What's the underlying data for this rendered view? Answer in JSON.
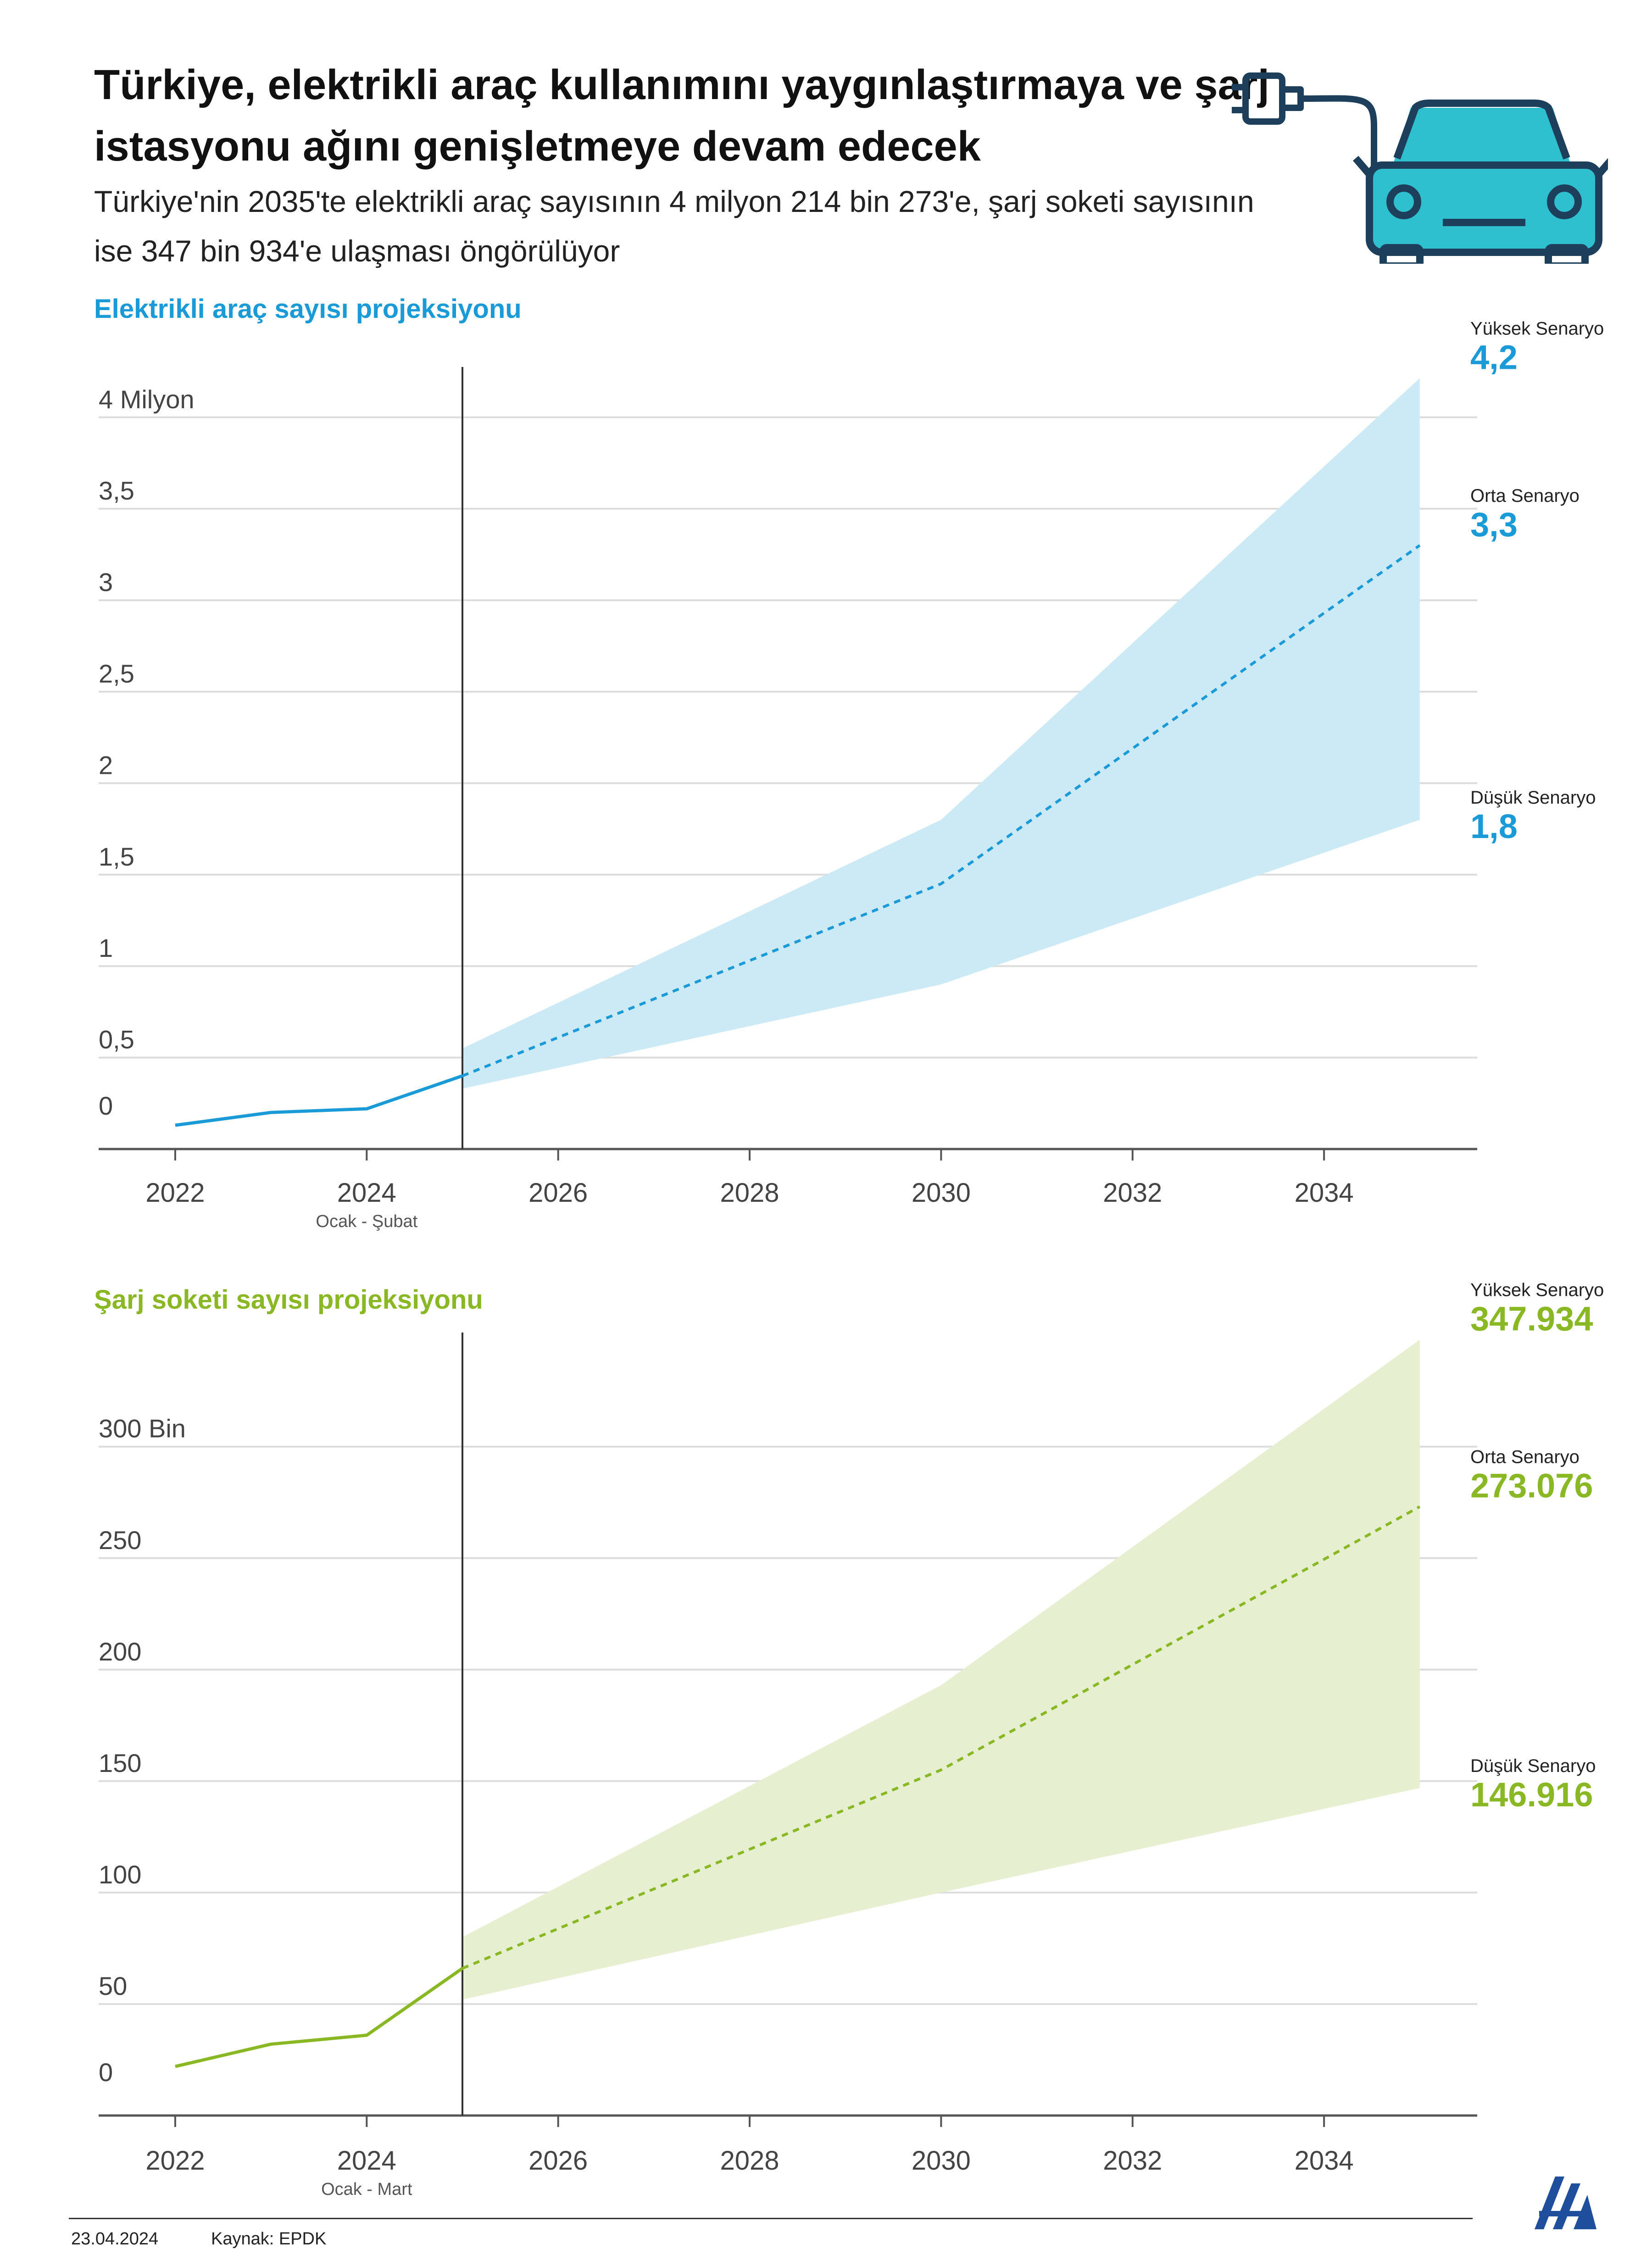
{
  "header": {
    "title": "Türkiye, elektrikli araç kullanımını yaygınlaştırmaya ve şarj istasyonu ağını genişletmeye devam edecek",
    "subtitle": "Türkiye'nin 2035'te elektrikli araç sayısının 4 milyon 214 bin 273'e, şarj soketi sayısının ise 347 bin 934'e ulaşması öngörülüyor",
    "icon": "ev-charging-car-icon"
  },
  "chart_data": [
    {
      "type": "area",
      "title": "Elektrikli araç sayısı projeksiyonu",
      "color": "#1a9ad6",
      "band_color": "#cce9f6",
      "ylim": [
        0,
        4.2
      ],
      "yticks": [
        0,
        0.5,
        1,
        1.5,
        2,
        2.5,
        3,
        3.5,
        4
      ],
      "ytick_labels": [
        "0",
        "0,5",
        "1",
        "1,5",
        "2",
        "2,5",
        "3",
        "3,5",
        "4 Milyon"
      ],
      "xlim": [
        2021.2,
        2035.6
      ],
      "xticks": [
        2022,
        2024,
        2026,
        2028,
        2030,
        2032,
        2034
      ],
      "xtick_labels": [
        "2022",
        "2024",
        "2026",
        "2028",
        "2030",
        "2032",
        "2034"
      ],
      "x_note": "Ocak - Şubat",
      "divider_x": 2025,
      "historical": {
        "x": [
          2022,
          2023,
          2024,
          2025
        ],
        "y": [
          0.13,
          0.2,
          0.22,
          0.4
        ]
      },
      "series": [
        {
          "name": "Yüksek Senaryo",
          "x": [
            2025,
            2030,
            2035
          ],
          "y": [
            0.55,
            1.8,
            4.214
          ],
          "label": "4,2"
        },
        {
          "name": "Orta Senaryo",
          "x": [
            2025,
            2030,
            2035
          ],
          "y": [
            0.4,
            1.45,
            3.3
          ],
          "label": "3,3"
        },
        {
          "name": "Düşük Senaryo",
          "x": [
            2025,
            2030,
            2035
          ],
          "y": [
            0.33,
            0.9,
            1.8
          ],
          "label": "1,8"
        }
      ]
    },
    {
      "type": "area",
      "title": "Şarj soketi sayısı projeksiyonu",
      "color": "#8ab824",
      "band_color": "#e6f0d0",
      "ylim": [
        0,
        345
      ],
      "yticks": [
        0,
        50,
        100,
        150,
        200,
        250,
        300
      ],
      "ytick_labels": [
        "0",
        "50",
        "100",
        "150",
        "200",
        "250",
        "300 Bin"
      ],
      "xlim": [
        2021.2,
        2035.6
      ],
      "xticks": [
        2022,
        2024,
        2026,
        2028,
        2030,
        2032,
        2034
      ],
      "xtick_labels": [
        "2022",
        "2024",
        "2026",
        "2028",
        "2030",
        "2032",
        "2034"
      ],
      "x_note": "Ocak - Mart",
      "divider_x": 2025,
      "historical": {
        "x": [
          2022,
          2023,
          2024,
          2025
        ],
        "y": [
          22,
          32,
          36,
          66
        ]
      },
      "series": [
        {
          "name": "Yüksek Senaryo",
          "x": [
            2025,
            2030,
            2035
          ],
          "y": [
            80,
            193,
            347.934
          ],
          "label": "347.934"
        },
        {
          "name": "Orta Senaryo",
          "x": [
            2025,
            2030,
            2035
          ],
          "y": [
            66,
            155,
            273.076
          ],
          "label": "273.076"
        },
        {
          "name": "Düşük Senaryo",
          "x": [
            2025,
            2030,
            2035
          ],
          "y": [
            52,
            100,
            146.916
          ],
          "label": "146.916"
        }
      ]
    }
  ],
  "footer": {
    "date": "23.04.2024",
    "source": "Kaynak: EPDK",
    "logo": "aa-logo-icon"
  }
}
